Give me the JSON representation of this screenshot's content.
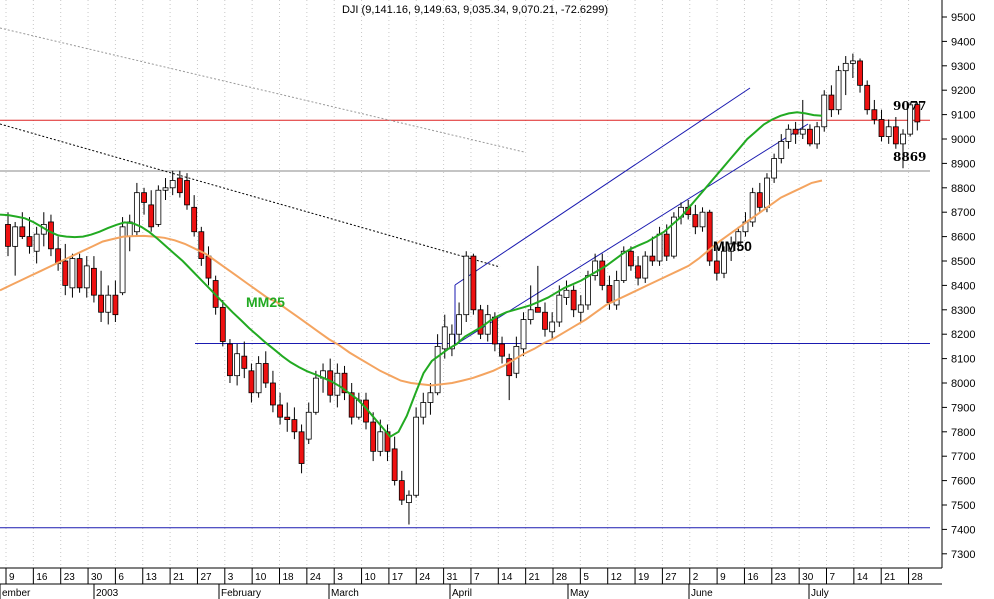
{
  "chart_data": {
    "type": "candlestick",
    "title": "DJI (9,141.16, 9,149.63, 9,035.34, 9,070.21, -72.6299)",
    "ylim": [
      7220,
      9580
    ],
    "y_ticks": [
      9500,
      9400,
      9300,
      9200,
      9100,
      9000,
      8900,
      8800,
      8700,
      8600,
      8500,
      8400,
      8300,
      8200,
      8100,
      8000,
      7900,
      7800,
      7700,
      7600,
      7500,
      7400,
      7300
    ],
    "y_tick_labels": [
      "9500",
      "9400",
      "9300",
      "9200",
      "9100",
      "9000",
      "8900",
      "8800",
      "8700",
      "8600",
      "8500",
      "8400",
      "8300",
      "8200",
      "8100",
      "8000",
      "7900",
      "7800",
      "7700",
      "7600",
      "7500",
      "7400",
      "7300"
    ],
    "x_day_labels": [
      "9",
      "16",
      "23",
      "30",
      "6",
      "13",
      "21",
      "27",
      "3",
      "10",
      "18",
      "24",
      "3",
      "10",
      "17",
      "24",
      "31",
      "7",
      "14",
      "21",
      "28",
      "5",
      "12",
      "19",
      "27",
      "2",
      "9",
      "16",
      "23",
      "30",
      "7",
      "14",
      "21",
      "28"
    ],
    "x_month_labels": [
      "ember",
      "2003",
      "February",
      "March",
      "April",
      "May",
      "June",
      "July"
    ],
    "candles": [
      {
        "o": 8650,
        "h": 8700,
        "l": 8520,
        "c": 8560
      },
      {
        "o": 8560,
        "h": 8660,
        "l": 8440,
        "c": 8640
      },
      {
        "o": 8640,
        "h": 8700,
        "l": 8590,
        "c": 8600
      },
      {
        "o": 8600,
        "h": 8680,
        "l": 8530,
        "c": 8560
      },
      {
        "o": 8540,
        "h": 8640,
        "l": 8490,
        "c": 8610
      },
      {
        "o": 8610,
        "h": 8700,
        "l": 8560,
        "c": 8650
      },
      {
        "o": 8660,
        "h": 8690,
        "l": 8520,
        "c": 8550
      },
      {
        "o": 8550,
        "h": 8600,
        "l": 8460,
        "c": 8490
      },
      {
        "o": 8500,
        "h": 8570,
        "l": 8360,
        "c": 8400
      },
      {
        "o": 8390,
        "h": 8530,
        "l": 8350,
        "c": 8510
      },
      {
        "o": 8510,
        "h": 8530,
        "l": 8370,
        "c": 8390
      },
      {
        "o": 8390,
        "h": 8520,
        "l": 8350,
        "c": 8480
      },
      {
        "o": 8470,
        "h": 8520,
        "l": 8330,
        "c": 8360
      },
      {
        "o": 8360,
        "h": 8460,
        "l": 8250,
        "c": 8290
      },
      {
        "o": 8290,
        "h": 8400,
        "l": 8240,
        "c": 8360
      },
      {
        "o": 8360,
        "h": 8420,
        "l": 8250,
        "c": 8280
      },
      {
        "o": 8370,
        "h": 8680,
        "l": 8360,
        "c": 8640
      },
      {
        "o": 8600,
        "h": 8690,
        "l": 8540,
        "c": 8660
      },
      {
        "o": 8620,
        "h": 8820,
        "l": 8600,
        "c": 8780
      },
      {
        "o": 8780,
        "h": 8800,
        "l": 8690,
        "c": 8740
      },
      {
        "o": 8730,
        "h": 8790,
        "l": 8620,
        "c": 8640
      },
      {
        "o": 8650,
        "h": 8810,
        "l": 8640,
        "c": 8790
      },
      {
        "o": 8790,
        "h": 8840,
        "l": 8750,
        "c": 8800
      },
      {
        "o": 8800,
        "h": 8870,
        "l": 8770,
        "c": 8830
      },
      {
        "o": 8840,
        "h": 8870,
        "l": 8760,
        "c": 8780
      },
      {
        "o": 8830,
        "h": 8860,
        "l": 8710,
        "c": 8730
      },
      {
        "o": 8720,
        "h": 8770,
        "l": 8600,
        "c": 8620
      },
      {
        "o": 8620,
        "h": 8640,
        "l": 8480,
        "c": 8510
      },
      {
        "o": 8520,
        "h": 8560,
        "l": 8400,
        "c": 8430
      },
      {
        "o": 8420,
        "h": 8440,
        "l": 8280,
        "c": 8310
      },
      {
        "o": 8310,
        "h": 8340,
        "l": 8150,
        "c": 8170
      },
      {
        "o": 8160,
        "h": 8180,
        "l": 8000,
        "c": 8030
      },
      {
        "o": 8030,
        "h": 8160,
        "l": 7990,
        "c": 8120
      },
      {
        "o": 8110,
        "h": 8170,
        "l": 8020,
        "c": 8060
      },
      {
        "o": 8050,
        "h": 8080,
        "l": 7920,
        "c": 7960
      },
      {
        "o": 7960,
        "h": 8110,
        "l": 7940,
        "c": 8080
      },
      {
        "o": 8080,
        "h": 8130,
        "l": 7980,
        "c": 8000
      },
      {
        "o": 8000,
        "h": 8050,
        "l": 7880,
        "c": 7910
      },
      {
        "o": 7910,
        "h": 7960,
        "l": 7830,
        "c": 7860
      },
      {
        "o": 7860,
        "h": 7920,
        "l": 7800,
        "c": 7850
      },
      {
        "o": 7850,
        "h": 7900,
        "l": 7770,
        "c": 7800
      },
      {
        "o": 7800,
        "h": 7830,
        "l": 7630,
        "c": 7670
      },
      {
        "o": 7770,
        "h": 7920,
        "l": 7750,
        "c": 7880
      },
      {
        "o": 7880,
        "h": 8050,
        "l": 7870,
        "c": 8020
      },
      {
        "o": 8020,
        "h": 8080,
        "l": 7960,
        "c": 8050
      },
      {
        "o": 8050,
        "h": 8100,
        "l": 7920,
        "c": 7950
      },
      {
        "o": 7950,
        "h": 8080,
        "l": 7900,
        "c": 8040
      },
      {
        "o": 8040,
        "h": 8070,
        "l": 7930,
        "c": 7960
      },
      {
        "o": 7960,
        "h": 8000,
        "l": 7830,
        "c": 7860
      },
      {
        "o": 7860,
        "h": 7960,
        "l": 7850,
        "c": 7930
      },
      {
        "o": 7930,
        "h": 7960,
        "l": 7810,
        "c": 7840
      },
      {
        "o": 7840,
        "h": 7880,
        "l": 7680,
        "c": 7720
      },
      {
        "o": 7720,
        "h": 7850,
        "l": 7700,
        "c": 7800
      },
      {
        "o": 7800,
        "h": 7830,
        "l": 7680,
        "c": 7720
      },
      {
        "o": 7730,
        "h": 7780,
        "l": 7580,
        "c": 7600
      },
      {
        "o": 7600,
        "h": 7640,
        "l": 7500,
        "c": 7520
      },
      {
        "o": 7510,
        "h": 7560,
        "l": 7420,
        "c": 7540
      },
      {
        "o": 7540,
        "h": 7900,
        "l": 7530,
        "c": 7860
      },
      {
        "o": 7860,
        "h": 7960,
        "l": 7830,
        "c": 7920
      },
      {
        "o": 7920,
        "h": 8000,
        "l": 7870,
        "c": 7960
      },
      {
        "o": 7960,
        "h": 8200,
        "l": 7950,
        "c": 8150
      },
      {
        "o": 8140,
        "h": 8280,
        "l": 8100,
        "c": 8230
      },
      {
        "o": 8140,
        "h": 8240,
        "l": 8110,
        "c": 8200
      },
      {
        "o": 8200,
        "h": 8330,
        "l": 8170,
        "c": 8280
      },
      {
        "o": 8280,
        "h": 8540,
        "l": 8250,
        "c": 8520
      },
      {
        "o": 8520,
        "h": 8530,
        "l": 8280,
        "c": 8300
      },
      {
        "o": 8300,
        "h": 8320,
        "l": 8180,
        "c": 8200
      },
      {
        "o": 8200,
        "h": 8320,
        "l": 8170,
        "c": 8280
      },
      {
        "o": 8270,
        "h": 8290,
        "l": 8130,
        "c": 8160
      },
      {
        "o": 8160,
        "h": 8190,
        "l": 8080,
        "c": 8110
      },
      {
        "o": 8100,
        "h": 8120,
        "l": 7930,
        "c": 8030
      },
      {
        "o": 8040,
        "h": 8190,
        "l": 8020,
        "c": 8150
      },
      {
        "o": 8140,
        "h": 8290,
        "l": 8110,
        "c": 8260
      },
      {
        "o": 8260,
        "h": 8400,
        "l": 8240,
        "c": 8300
      },
      {
        "o": 8310,
        "h": 8480,
        "l": 8300,
        "c": 8290
      },
      {
        "o": 8290,
        "h": 8330,
        "l": 8190,
        "c": 8220
      },
      {
        "o": 8210,
        "h": 8290,
        "l": 8180,
        "c": 8250
      },
      {
        "o": 8250,
        "h": 8400,
        "l": 8230,
        "c": 8360
      },
      {
        "o": 8350,
        "h": 8420,
        "l": 8320,
        "c": 8380
      },
      {
        "o": 8380,
        "h": 8400,
        "l": 8270,
        "c": 8300
      },
      {
        "o": 8290,
        "h": 8360,
        "l": 8250,
        "c": 8320
      },
      {
        "o": 8320,
        "h": 8460,
        "l": 8300,
        "c": 8440
      },
      {
        "o": 8440,
        "h": 8530,
        "l": 8420,
        "c": 8500
      },
      {
        "o": 8500,
        "h": 8530,
        "l": 8380,
        "c": 8400
      },
      {
        "o": 8400,
        "h": 8440,
        "l": 8300,
        "c": 8330
      },
      {
        "o": 8320,
        "h": 8460,
        "l": 8300,
        "c": 8420
      },
      {
        "o": 8420,
        "h": 8560,
        "l": 8410,
        "c": 8540
      },
      {
        "o": 8540,
        "h": 8560,
        "l": 8460,
        "c": 8480
      },
      {
        "o": 8480,
        "h": 8520,
        "l": 8400,
        "c": 8430
      },
      {
        "o": 8430,
        "h": 8540,
        "l": 8410,
        "c": 8520
      },
      {
        "o": 8520,
        "h": 8600,
        "l": 8480,
        "c": 8500
      },
      {
        "o": 8500,
        "h": 8640,
        "l": 8480,
        "c": 8610
      },
      {
        "o": 8610,
        "h": 8650,
        "l": 8500,
        "c": 8520
      },
      {
        "o": 8520,
        "h": 8700,
        "l": 8510,
        "c": 8680
      },
      {
        "o": 8680,
        "h": 8740,
        "l": 8650,
        "c": 8720
      },
      {
        "o": 8720,
        "h": 8750,
        "l": 8670,
        "c": 8690
      },
      {
        "o": 8690,
        "h": 8730,
        "l": 8610,
        "c": 8640
      },
      {
        "o": 8640,
        "h": 8720,
        "l": 8620,
        "c": 8700
      },
      {
        "o": 8700,
        "h": 8710,
        "l": 8480,
        "c": 8500
      },
      {
        "o": 8500,
        "h": 8560,
        "l": 8420,
        "c": 8450
      },
      {
        "o": 8450,
        "h": 8560,
        "l": 8430,
        "c": 8540
      },
      {
        "o": 8540,
        "h": 8600,
        "l": 8500,
        "c": 8570
      },
      {
        "o": 8570,
        "h": 8640,
        "l": 8540,
        "c": 8620
      },
      {
        "o": 8620,
        "h": 8700,
        "l": 8600,
        "c": 8660
      },
      {
        "o": 8660,
        "h": 8800,
        "l": 8640,
        "c": 8780
      },
      {
        "o": 8780,
        "h": 8820,
        "l": 8700,
        "c": 8720
      },
      {
        "o": 8720,
        "h": 8860,
        "l": 8700,
        "c": 8840
      },
      {
        "o": 8840,
        "h": 8940,
        "l": 8820,
        "c": 8920
      },
      {
        "o": 8920,
        "h": 9020,
        "l": 8900,
        "c": 8990
      },
      {
        "o": 8990,
        "h": 9060,
        "l": 8960,
        "c": 9040
      },
      {
        "o": 9040,
        "h": 9070,
        "l": 8980,
        "c": 9020
      },
      {
        "o": 9020,
        "h": 9160,
        "l": 9000,
        "c": 9040
      },
      {
        "o": 9040,
        "h": 9060,
        "l": 8970,
        "c": 8980
      },
      {
        "o": 8980,
        "h": 9070,
        "l": 8960,
        "c": 9050
      },
      {
        "o": 9050,
        "h": 9200,
        "l": 9030,
        "c": 9180
      },
      {
        "o": 9180,
        "h": 9220,
        "l": 9090,
        "c": 9120
      },
      {
        "o": 9120,
        "h": 9300,
        "l": 9100,
        "c": 9280
      },
      {
        "o": 9280,
        "h": 9340,
        "l": 9180,
        "c": 9310
      },
      {
        "o": 9310,
        "h": 9350,
        "l": 9250,
        "c": 9320
      },
      {
        "o": 9320,
        "h": 9330,
        "l": 9190,
        "c": 9220
      },
      {
        "o": 9220,
        "h": 9240,
        "l": 9100,
        "c": 9120
      },
      {
        "o": 9120,
        "h": 9160,
        "l": 9060,
        "c": 9080
      },
      {
        "o": 9080,
        "h": 9120,
        "l": 8990,
        "c": 9010
      },
      {
        "o": 9010,
        "h": 9080,
        "l": 8980,
        "c": 9050
      },
      {
        "o": 9050,
        "h": 9090,
        "l": 8960,
        "c": 8980
      },
      {
        "o": 8980,
        "h": 9040,
        "l": 8880,
        "c": 9020
      },
      {
        "o": 9020,
        "h": 9150,
        "l": 9010,
        "c": 9140
      },
      {
        "o": 9141,
        "h": 9150,
        "l": 9035,
        "c": 9070
      }
    ],
    "ma25": [
      8690,
      8688,
      8682,
      8675,
      8660,
      8640,
      8620,
      8605,
      8600,
      8598,
      8600,
      8608,
      8620,
      8635,
      8648,
      8658,
      8655,
      8640,
      8618,
      8590,
      8560,
      8530,
      8500,
      8465,
      8430,
      8395,
      8360,
      8325,
      8290,
      8258,
      8225,
      8195,
      8165,
      8138,
      8110,
      8085,
      8065,
      8048,
      8035,
      8020,
      8005,
      7985,
      7960,
      7935,
      7900,
      7860,
      7820,
      7780,
      7800,
      7865,
      7955,
      8040,
      8090,
      8115,
      8140,
      8160,
      8190,
      8210,
      8230,
      8255,
      8275,
      8290,
      8300,
      8310,
      8320,
      8335,
      8350,
      8370,
      8390,
      8405,
      8420,
      8440,
      8460,
      8480,
      8505,
      8530,
      8550,
      8565,
      8580,
      8600,
      8620,
      8650,
      8680,
      8720,
      8760,
      8800,
      8840,
      8880,
      8920,
      8960,
      9000,
      9030,
      9060,
      9080,
      9095,
      9105,
      9110,
      9105,
      9098,
      9095
    ],
    "ma50": [
      8380,
      8400,
      8420,
      8440,
      8460,
      8480,
      8500,
      8520,
      8540,
      8560,
      8580,
      8590,
      8600,
      8602,
      8603,
      8600,
      8595,
      8585,
      8570,
      8550,
      8530,
      8500,
      8470,
      8440,
      8410,
      8380,
      8350,
      8330,
      8300,
      8270,
      8240,
      8210,
      8180,
      8155,
      8125,
      8100,
      8075,
      8050,
      8030,
      8010,
      8000,
      7995,
      7990,
      7995,
      8000,
      8010,
      8020,
      8035,
      8050,
      8070,
      8095,
      8120,
      8140,
      8165,
      8185,
      8210,
      8235,
      8260,
      8290,
      8320,
      8340,
      8360,
      8380,
      8400,
      8420,
      8440,
      8460,
      8480,
      8510,
      8545,
      8580,
      8610,
      8640,
      8670,
      8700,
      8730,
      8760,
      8780,
      8800,
      8820,
      8830
    ],
    "support_lines": [
      {
        "label": "9077",
        "value": 9077
      },
      {
        "label": "8869",
        "value": 8869
      },
      {
        "label": "",
        "value": 8162
      },
      {
        "label": "",
        "value": 7407
      }
    ],
    "series_labels": [
      {
        "name": "MM25"
      },
      {
        "name": "MM50"
      }
    ],
    "colors": {
      "up_candle": "#ffffff",
      "down_candle": "#ee1111",
      "ma25": "#22aa22",
      "ma50": "#f4a460",
      "resistance": "#dd2222",
      "support": "#888888",
      "horizontal": "#1a1ab0",
      "channel": "#1a1ab0",
      "trend_dotted": "#000000",
      "grid": "#c8c8c8"
    },
    "grid": "vertical-dotted",
    "y_axis_position": "right"
  }
}
